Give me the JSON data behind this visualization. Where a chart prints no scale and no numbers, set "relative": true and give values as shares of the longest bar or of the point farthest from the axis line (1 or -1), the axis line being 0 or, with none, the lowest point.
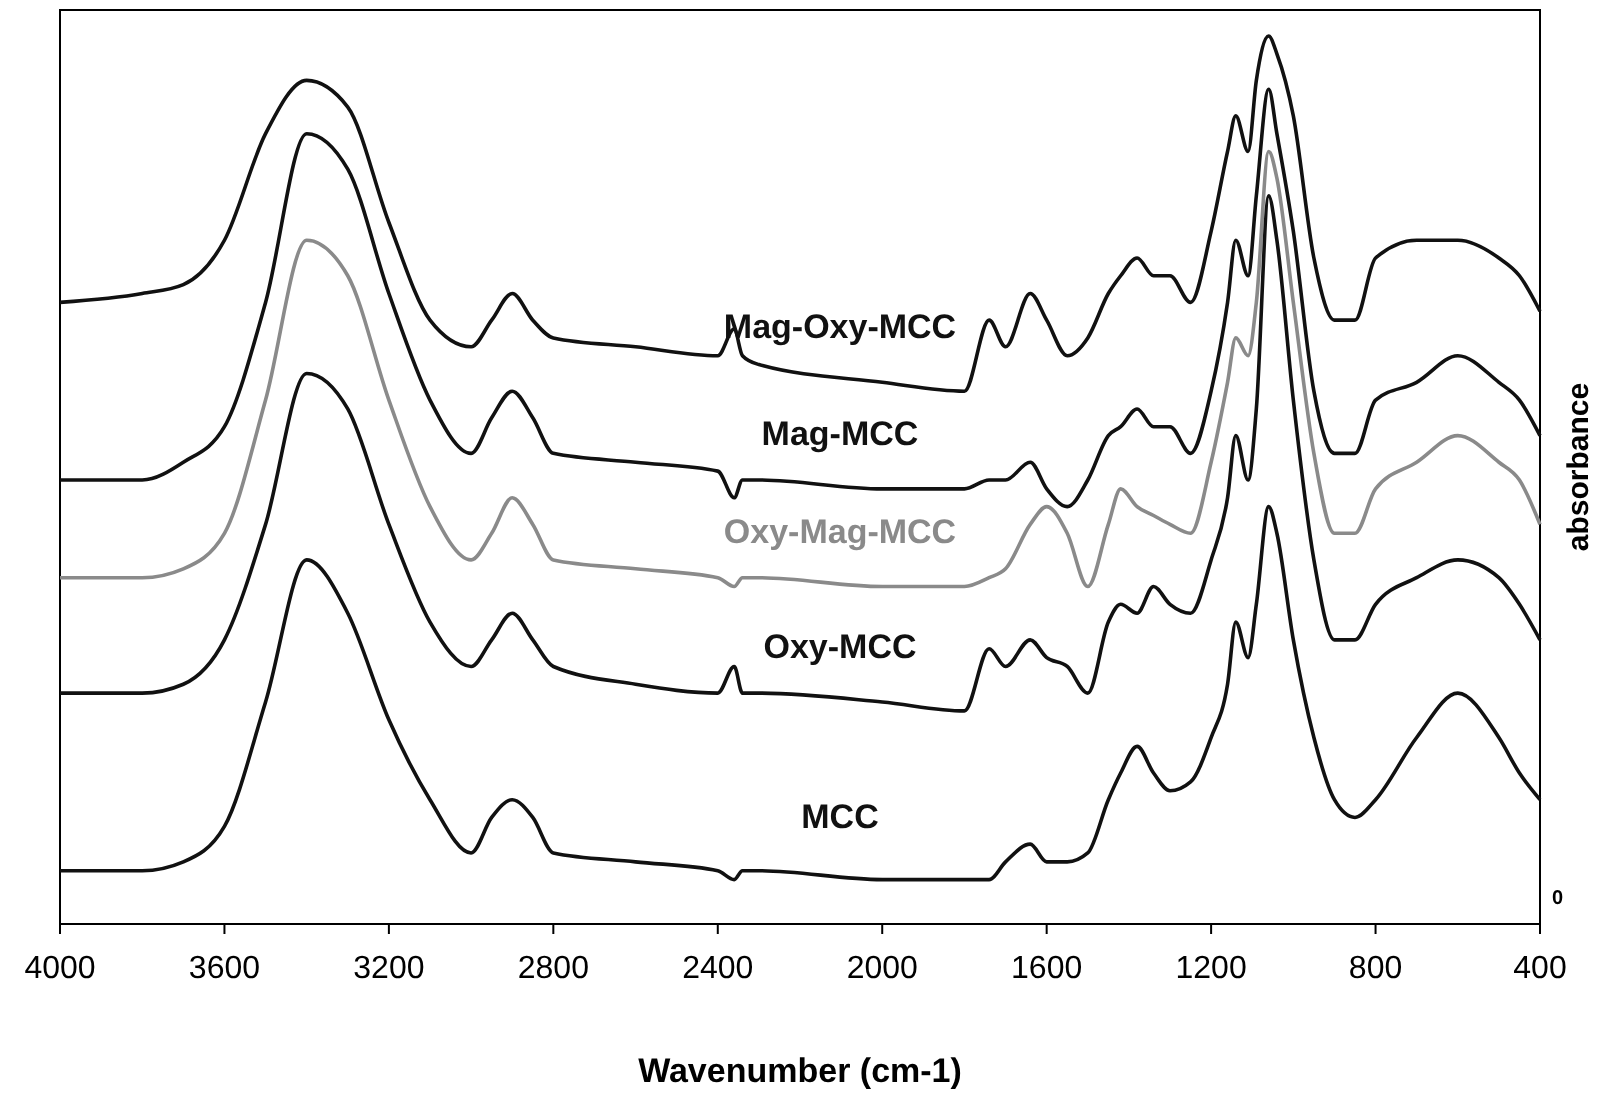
{
  "chart_data": {
    "type": "line",
    "relative": true,
    "xlabel": "Wavenumber (cm-1)",
    "ylabel": "absorbance",
    "annotations": [
      "0"
    ],
    "xlim": [
      4000,
      400
    ],
    "xticks": [
      4000,
      3600,
      3200,
      2800,
      2400,
      2000,
      1600,
      1200,
      800,
      400
    ],
    "grid": false,
    "legend": false,
    "marker": "none",
    "line_style": "solid",
    "x": [
      4000,
      3800,
      3700,
      3600,
      3500,
      3400,
      3300,
      3200,
      3100,
      3000,
      2950,
      2900,
      2850,
      2800,
      2600,
      2400,
      2360,
      2340,
      2300,
      2000,
      1800,
      1740,
      1700,
      1640,
      1600,
      1550,
      1500,
      1450,
      1420,
      1380,
      1340,
      1300,
      1250,
      1200,
      1160,
      1140,
      1110,
      1090,
      1060,
      1040,
      1000,
      950,
      900,
      850,
      800,
      700,
      600,
      500,
      450,
      400
    ],
    "series": [
      {
        "name": "Mag-Oxy-MCC",
        "color": "#111111",
        "values": [
          0.7,
          0.71,
          0.72,
          0.77,
          0.89,
          0.95,
          0.92,
          0.79,
          0.68,
          0.65,
          0.68,
          0.71,
          0.68,
          0.66,
          0.65,
          0.64,
          0.67,
          0.64,
          0.63,
          0.61,
          0.6,
          0.68,
          0.65,
          0.71,
          0.68,
          0.64,
          0.66,
          0.71,
          0.73,
          0.75,
          0.73,
          0.73,
          0.7,
          0.78,
          0.87,
          0.91,
          0.87,
          0.95,
          1.0,
          0.98,
          0.91,
          0.75,
          0.68,
          0.68,
          0.75,
          0.77,
          0.77,
          0.75,
          0.73,
          0.69
        ]
      },
      {
        "name": "Mag-MCC",
        "color": "#111111",
        "values": [
          0.5,
          0.5,
          0.52,
          0.56,
          0.7,
          0.89,
          0.85,
          0.71,
          0.59,
          0.53,
          0.57,
          0.6,
          0.57,
          0.53,
          0.52,
          0.51,
          0.48,
          0.5,
          0.5,
          0.49,
          0.49,
          0.5,
          0.5,
          0.52,
          0.49,
          0.47,
          0.5,
          0.55,
          0.56,
          0.58,
          0.56,
          0.56,
          0.53,
          0.6,
          0.7,
          0.77,
          0.73,
          0.82,
          0.94,
          0.89,
          0.78,
          0.6,
          0.53,
          0.53,
          0.59,
          0.61,
          0.64,
          0.61,
          0.59,
          0.55
        ]
      },
      {
        "name": "Oxy-Mag-MCC",
        "color": "#8a8a8a",
        "values": [
          0.39,
          0.39,
          0.4,
          0.44,
          0.59,
          0.77,
          0.73,
          0.59,
          0.47,
          0.41,
          0.44,
          0.48,
          0.45,
          0.41,
          0.4,
          0.39,
          0.38,
          0.39,
          0.39,
          0.38,
          0.38,
          0.39,
          0.4,
          0.45,
          0.47,
          0.44,
          0.38,
          0.45,
          0.49,
          0.47,
          0.46,
          0.45,
          0.44,
          0.52,
          0.61,
          0.66,
          0.64,
          0.7,
          0.87,
          0.84,
          0.7,
          0.53,
          0.44,
          0.44,
          0.49,
          0.52,
          0.55,
          0.52,
          0.5,
          0.45
        ]
      },
      {
        "name": "Oxy-MCC",
        "color": "#111111",
        "values": [
          0.26,
          0.26,
          0.27,
          0.32,
          0.45,
          0.62,
          0.58,
          0.45,
          0.34,
          0.29,
          0.32,
          0.35,
          0.32,
          0.29,
          0.27,
          0.26,
          0.29,
          0.26,
          0.26,
          0.25,
          0.24,
          0.31,
          0.29,
          0.32,
          0.3,
          0.29,
          0.26,
          0.34,
          0.36,
          0.35,
          0.38,
          0.36,
          0.35,
          0.41,
          0.48,
          0.55,
          0.5,
          0.58,
          0.82,
          0.77,
          0.59,
          0.41,
          0.32,
          0.32,
          0.36,
          0.39,
          0.41,
          0.39,
          0.36,
          0.32
        ]
      },
      {
        "name": "MCC",
        "color": "#111111",
        "values": [
          0.06,
          0.06,
          0.07,
          0.11,
          0.25,
          0.41,
          0.35,
          0.23,
          0.14,
          0.08,
          0.12,
          0.14,
          0.12,
          0.08,
          0.07,
          0.06,
          0.05,
          0.06,
          0.06,
          0.05,
          0.05,
          0.05,
          0.07,
          0.09,
          0.07,
          0.07,
          0.08,
          0.14,
          0.17,
          0.2,
          0.17,
          0.15,
          0.16,
          0.21,
          0.27,
          0.34,
          0.3,
          0.36,
          0.47,
          0.44,
          0.32,
          0.21,
          0.14,
          0.12,
          0.14,
          0.21,
          0.26,
          0.21,
          0.17,
          0.14
        ]
      }
    ]
  }
}
